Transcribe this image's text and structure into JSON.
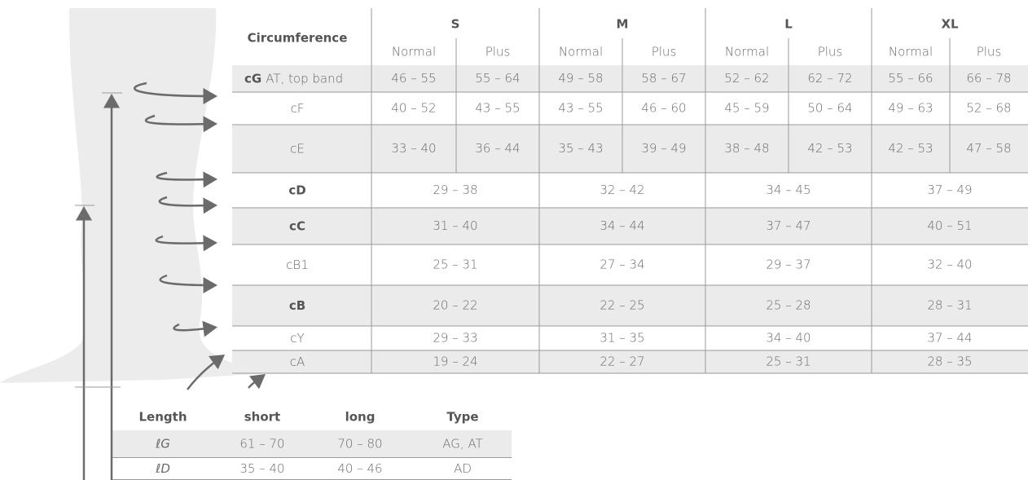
{
  "circumference_table": {
    "header": "Circumference",
    "sizes": [
      "S",
      "M",
      "L",
      "XL"
    ],
    "sub_columns": [
      "Normal",
      "Plus"
    ],
    "rows": [
      {
        "code": "cG",
        "note": "AT, top band",
        "bold": true,
        "values": [
          "46 – 55",
          "55 – 64",
          "49 – 58",
          "58 – 67",
          "52 – 62",
          "62 – 72",
          "55 – 66",
          "66 – 78"
        ]
      },
      {
        "code": "cF",
        "bold": false,
        "values": [
          "40 – 52",
          "43 – 55",
          "43 – 55",
          "46 – 60",
          "45 – 59",
          "50 – 64",
          "49 – 63",
          "52 – 68"
        ]
      },
      {
        "code": "cE",
        "bold": false,
        "values": [
          "33 – 40",
          "36 – 44",
          "35 – 43",
          "39 – 49",
          "38 – 48",
          "42 – 53",
          "42 – 53",
          "47 – 58"
        ]
      },
      {
        "code": "cD",
        "bold": true,
        "values": [
          "29 – 38",
          "32 – 42",
          "34 – 45",
          "37 – 49"
        ]
      },
      {
        "code": "cC",
        "bold": true,
        "values": [
          "31 – 40",
          "34 – 44",
          "37 – 47",
          "40 – 51"
        ]
      },
      {
        "code": "cB1",
        "bold": false,
        "values": [
          "25 – 31",
          "27 – 34",
          "29 – 37",
          "32 – 40"
        ]
      },
      {
        "code": "cB",
        "bold": true,
        "values": [
          "20 – 22",
          "22 – 25",
          "25 – 28",
          "28 – 31"
        ]
      },
      {
        "code": "cY",
        "bold": false,
        "values": [
          "29 – 33",
          "31 – 35",
          "34 – 40",
          "37 – 44"
        ]
      },
      {
        "code": "cA",
        "bold": false,
        "values": [
          "19 – 24",
          "22 – 27",
          "25 – 31",
          "28 – 35"
        ]
      }
    ]
  },
  "length_table": {
    "headers": [
      "Length",
      "short",
      "long",
      "Type"
    ],
    "rows": [
      [
        "ℓG",
        "61 – 70",
        "70 – 80",
        "AG, AT"
      ],
      [
        "ℓD",
        "35 – 40",
        "40 – 46",
        "AD"
      ]
    ]
  }
}
